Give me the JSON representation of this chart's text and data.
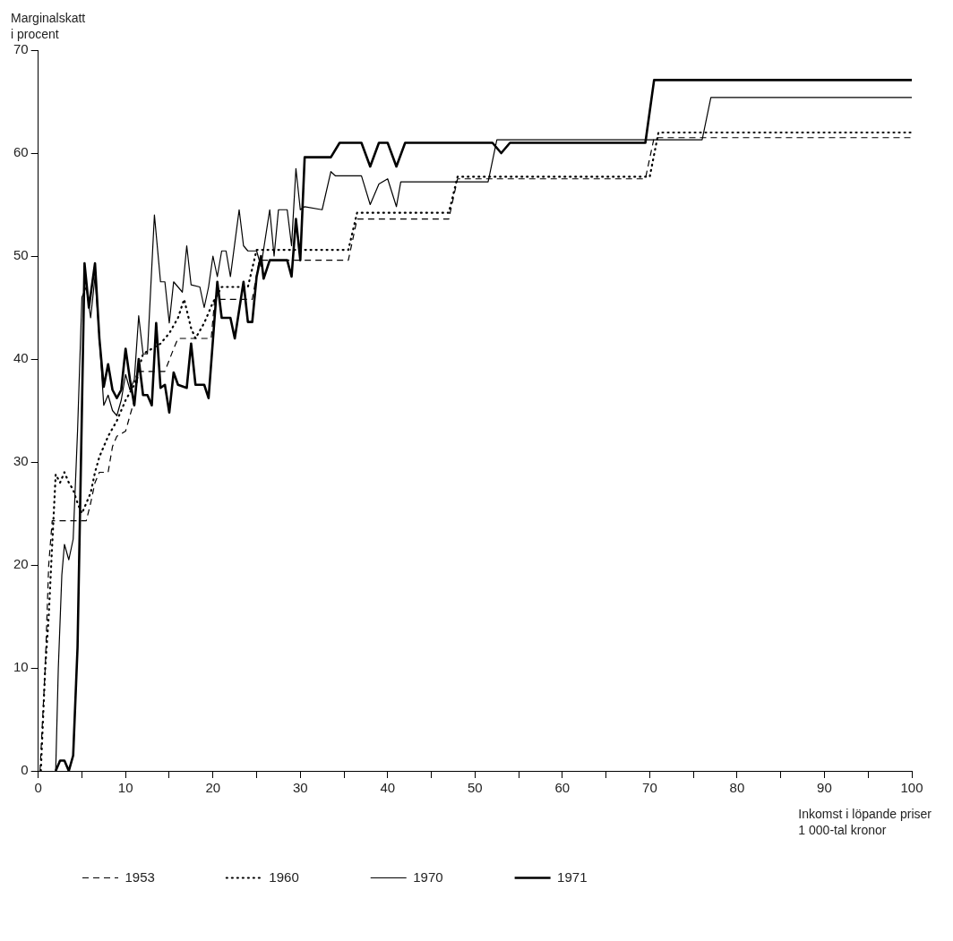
{
  "chart_data": {
    "type": "line",
    "xlabel": "Inkomst i löpande priser\n1 000-tal kronor",
    "ylabel": "Marginalskatt\ni procent",
    "xlim": [
      0,
      100
    ],
    "ylim": [
      0,
      70
    ],
    "xticks": [
      0,
      {
        "value": 5,
        "label": null
      },
      10,
      {
        "value": 15,
        "label": null
      },
      20,
      {
        "value": 25,
        "label": null
      },
      30,
      {
        "value": 35,
        "label": null
      },
      40,
      {
        "value": 45,
        "label": null
      },
      50,
      {
        "value": 55,
        "label": null
      },
      60,
      {
        "value": 65,
        "label": null
      },
      70,
      {
        "value": 75,
        "label": null
      },
      80,
      {
        "value": 85,
        "label": null
      },
      90,
      {
        "value": 95,
        "label": null
      },
      100
    ],
    "yticks": [
      0,
      10,
      20,
      30,
      40,
      50,
      60,
      70
    ],
    "grid": false,
    "legend": "bottom left",
    "marker": "none",
    "series": [
      {
        "name": "1953",
        "color": "#000000",
        "line_style": "dashed",
        "x": [
          0.2,
          0.8,
          1.2,
          1.6,
          5.5,
          6,
          6.5,
          7,
          8,
          8.5,
          9,
          10,
          11,
          11.5,
          14.5,
          15.5,
          16,
          19.8,
          20.2,
          24.5,
          25.3,
          35.5,
          36.5,
          47,
          48,
          69.5,
          70.5,
          100
        ],
        "values": [
          0,
          10,
          20,
          24.3,
          24.3,
          26,
          28,
          29,
          29,
          31.5,
          32.5,
          33,
          36,
          38.8,
          38.8,
          41,
          42,
          42,
          45.8,
          45.8,
          49.6,
          49.6,
          53.6,
          53.6,
          57.5,
          57.5,
          61.5,
          61.5
        ]
      },
      {
        "name": "1960",
        "color": "#000000",
        "line_style": "dotted",
        "x": [
          0.3,
          0.8,
          1.2,
          1.6,
          2,
          2.5,
          3,
          3.5,
          4,
          4.5,
          5,
          5.5,
          6,
          6.5,
          7,
          7.5,
          8,
          9,
          10,
          11,
          12,
          13,
          14,
          15,
          16,
          16.7,
          17.5,
          18,
          19,
          20,
          21,
          24,
          25,
          35.5,
          36.5,
          47,
          48,
          70,
          71,
          100
        ],
        "values": [
          0,
          10,
          15,
          22,
          28.8,
          28,
          29,
          28,
          27.3,
          26,
          25,
          26,
          27,
          29,
          30.5,
          31.5,
          32.5,
          34,
          36,
          37.5,
          40.5,
          41,
          41.5,
          42.5,
          44,
          45.8,
          43,
          42,
          43.5,
          45.5,
          47,
          47,
          50.6,
          50.6,
          54.2,
          54.2,
          57.7,
          57.7,
          62,
          62
        ]
      },
      {
        "name": "1970",
        "color": "#000000",
        "line_style": "solid",
        "x": [
          2,
          2.3,
          2.7,
          3,
          3.5,
          4,
          4.5,
          5,
          5.5,
          6,
          6.5,
          7,
          7.5,
          8,
          8.5,
          9,
          9.5,
          10,
          10.5,
          11,
          11.5,
          12,
          12.5,
          13.3,
          14,
          14.5,
          15,
          15.5,
          16.5,
          17,
          17.5,
          18.5,
          19,
          19.5,
          20,
          20.5,
          21,
          21.5,
          22,
          23,
          23.5,
          24,
          25,
          25.5,
          26.5,
          27,
          27.5,
          28.5,
          29,
          29.5,
          30,
          30.5,
          32.5,
          33.5,
          34,
          37,
          38,
          39,
          40,
          41,
          41.5,
          51.5,
          52.5,
          76,
          77,
          100
        ],
        "values": [
          0,
          10,
          19,
          22,
          20.5,
          22.5,
          33,
          46,
          47,
          44,
          48,
          42,
          35.5,
          36.5,
          35,
          34.5,
          36,
          38.5,
          37,
          38,
          44.2,
          40.5,
          40.5,
          54,
          47.5,
          47.5,
          43.5,
          47.5,
          46.5,
          51,
          47.2,
          47,
          45,
          47,
          50,
          48,
          50.5,
          50.5,
          48,
          54.5,
          51,
          50.5,
          50.5,
          49,
          54.5,
          50,
          54.5,
          54.5,
          51,
          58.5,
          54.5,
          54.8,
          54.5,
          58.2,
          57.8,
          57.8,
          55,
          57,
          57.5,
          54.8,
          57.2,
          57.2,
          61.3,
          61.3,
          65.4,
          65.4
        ]
      },
      {
        "name": "1971",
        "color": "#000000",
        "line_style": "solid",
        "x": [
          2,
          2.5,
          3,
          3.5,
          4,
          4.5,
          5,
          5.3,
          5.8,
          6.5,
          7,
          7.5,
          8,
          8.5,
          9,
          9.5,
          10,
          10.5,
          11,
          11.5,
          12,
          12.5,
          13,
          13.5,
          14,
          14.5,
          15,
          15.5,
          16,
          17,
          17.5,
          18,
          19,
          19.5,
          20.5,
          21,
          22,
          22.5,
          23.5,
          24,
          24.5,
          25,
          25.5,
          25.8,
          26.5,
          28.5,
          29,
          29.5,
          30,
          30.5,
          33.5,
          34.5,
          37,
          38,
          39,
          40,
          41,
          42,
          52,
          53,
          54,
          69.5,
          70.5,
          100
        ],
        "values": [
          0,
          1,
          1,
          0,
          1.5,
          12,
          35,
          49.3,
          45,
          49.3,
          42,
          37.3,
          39.5,
          37,
          36.2,
          37,
          41,
          38,
          35.5,
          40,
          36.5,
          36.5,
          35.5,
          43.5,
          37.2,
          37.5,
          34.8,
          38.7,
          37.5,
          37.2,
          41.5,
          37.5,
          37.5,
          36.2,
          47.5,
          44,
          44,
          42,
          47.5,
          43.6,
          43.6,
          48,
          50,
          47.8,
          49.6,
          49.6,
          48,
          53.6,
          49.6,
          59.6,
          59.6,
          61,
          61,
          58.7,
          61,
          61,
          58.7,
          61,
          61,
          60,
          61,
          61,
          67.1,
          67.1
        ]
      }
    ]
  }
}
